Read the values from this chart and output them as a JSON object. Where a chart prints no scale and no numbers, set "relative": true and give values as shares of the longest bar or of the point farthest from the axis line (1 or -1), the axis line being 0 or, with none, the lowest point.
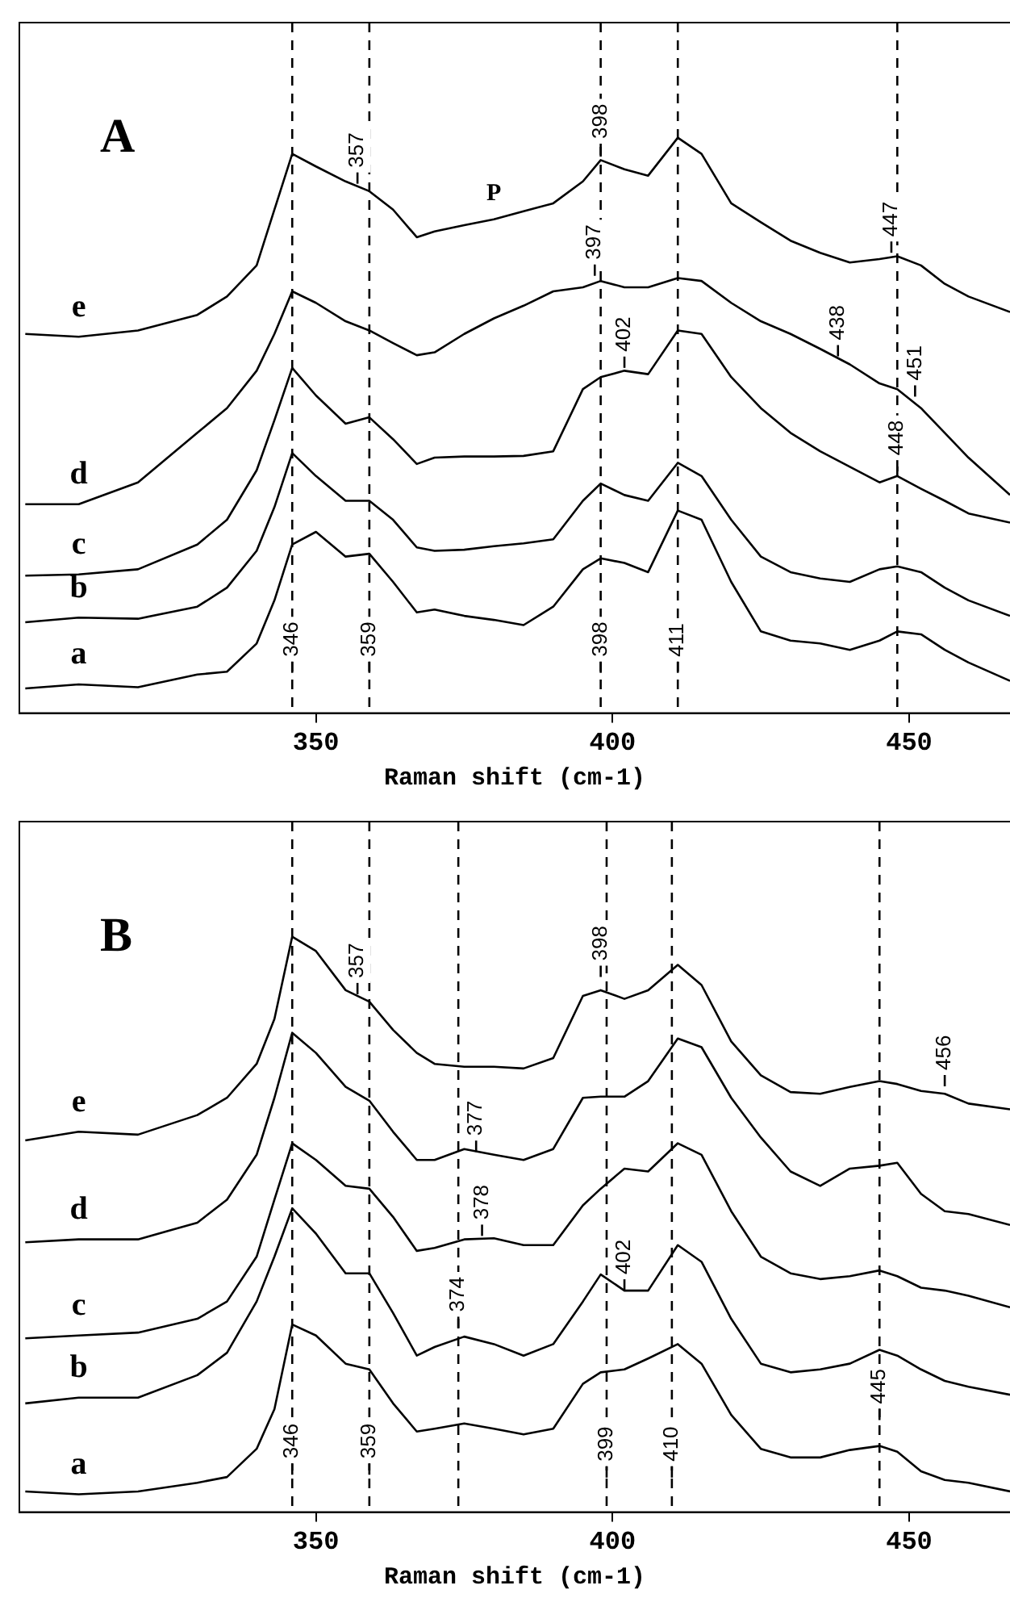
{
  "chart_data": [
    {
      "type": "line",
      "title": "A",
      "xlabel": "Raman shift (cm-1)",
      "relative": true,
      "tick_labels": "x",
      "grid": false,
      "x": [
        301,
        310,
        320,
        330,
        335,
        340,
        343,
        346,
        350,
        355,
        359,
        363,
        367,
        370,
        375,
        380,
        385,
        390,
        395,
        398,
        402,
        406,
        411,
        415,
        420,
        425,
        430,
        435,
        440,
        445,
        448,
        452,
        456,
        460,
        467
      ],
      "xlim": [
        300,
        467
      ],
      "xticks": [
        350,
        400,
        450
      ],
      "series": [
        {
          "name": "e",
          "color": "#000000",
          "values": [
            0.659,
            0.654,
            0.665,
            0.692,
            0.724,
            0.778,
            0.875,
            0.972,
            0.95,
            0.924,
            0.907,
            0.875,
            0.827,
            0.837,
            0.848,
            0.858,
            0.872,
            0.886,
            0.924,
            0.961,
            0.945,
            0.934,
            1,
            0.972,
            0.886,
            0.853,
            0.821,
            0.8,
            0.783,
            0.789,
            0.794,
            0.778,
            0.746,
            0.724,
            0.697
          ]
        },
        {
          "name": "d",
          "color": "#000000",
          "values": [
            0.363,
            0.363,
            0.401,
            0.487,
            0.53,
            0.595,
            0.659,
            0.733,
            0.713,
            0.681,
            0.665,
            0.643,
            0.622,
            0.627,
            0.659,
            0.686,
            0.708,
            0.733,
            0.74,
            0.751,
            0.74,
            0.74,
            0.756,
            0.751,
            0.713,
            0.681,
            0.659,
            0.633,
            0.606,
            0.573,
            0.563,
            0.53,
            0.487,
            0.444,
            0.379
          ]
        },
        {
          "name": "c",
          "color": "#000000",
          "values": [
            0.239,
            0.241,
            0.25,
            0.293,
            0.336,
            0.422,
            0.509,
            0.6,
            0.552,
            0.503,
            0.514,
            0.476,
            0.433,
            0.444,
            0.446,
            0.446,
            0.447,
            0.455,
            0.563,
            0.584,
            0.595,
            0.589,
            0.665,
            0.659,
            0.584,
            0.53,
            0.487,
            0.455,
            0.428,
            0.401,
            0.412,
            0.39,
            0.369,
            0.347,
            0.331
          ]
        },
        {
          "name": "b",
          "color": "#000000",
          "values": [
            0.158,
            0.166,
            0.164,
            0.185,
            0.218,
            0.282,
            0.358,
            0.452,
            0.412,
            0.369,
            0.369,
            0.336,
            0.288,
            0.282,
            0.284,
            0.29,
            0.295,
            0.302,
            0.369,
            0.399,
            0.379,
            0.369,
            0.435,
            0.412,
            0.336,
            0.272,
            0.245,
            0.234,
            0.228,
            0.25,
            0.255,
            0.245,
            0.218,
            0.196,
            0.169
          ]
        },
        {
          "name": "a",
          "color": "#000000",
          "values": [
            0.043,
            0.05,
            0.045,
            0.067,
            0.072,
            0.121,
            0.196,
            0.293,
            0.315,
            0.272,
            0.277,
            0.228,
            0.175,
            0.18,
            0.169,
            0.162,
            0.153,
            0.185,
            0.25,
            0.269,
            0.261,
            0.245,
            0.352,
            0.336,
            0.228,
            0.142,
            0.126,
            0.121,
            0.11,
            0.126,
            0.142,
            0.137,
            0.11,
            0.088,
            0.056
          ]
        }
      ],
      "ref_lines": [
        {
          "axis": "x",
          "value": 346,
          "line_style": "dashed"
        },
        {
          "axis": "x",
          "value": 359,
          "line_style": "dashed"
        },
        {
          "axis": "x",
          "value": 398,
          "line_style": "dashed"
        },
        {
          "axis": "x",
          "value": 411,
          "line_style": "dashed"
        },
        {
          "axis": "x",
          "value": 448,
          "line_style": "dashed"
        }
      ],
      "annotations": [
        {
          "text": "357",
          "x": 357,
          "y": 0.92
        },
        {
          "text": "398",
          "x": 398,
          "y": 0.97
        },
        {
          "text": "P",
          "x": 380,
          "y": 0.858
        },
        {
          "text": "397",
          "x": 397,
          "y": 0.76
        },
        {
          "text": "447",
          "x": 447,
          "y": 0.8
        },
        {
          "text": "402",
          "x": 402,
          "y": 0.6
        },
        {
          "text": "438",
          "x": 438,
          "y": 0.62
        },
        {
          "text": "451",
          "x": 451,
          "y": 0.55
        },
        {
          "text": "448",
          "x": 448,
          "y": 0.42
        },
        {
          "text": "346",
          "x": 346,
          "y": 0.07
        },
        {
          "text": "359",
          "x": 359,
          "y": 0.07
        },
        {
          "text": "398",
          "x": 398,
          "y": 0.07
        },
        {
          "text": "411",
          "x": 411,
          "y": 0.07
        }
      ]
    },
    {
      "type": "line",
      "title": "B",
      "xlabel": "Raman shift (cm-1)",
      "relative": true,
      "tick_labels": "x",
      "grid": false,
      "x": [
        301,
        310,
        320,
        330,
        335,
        340,
        343,
        346,
        350,
        355,
        359,
        363,
        367,
        370,
        375,
        380,
        385,
        390,
        395,
        398,
        402,
        406,
        411,
        415,
        420,
        425,
        430,
        435,
        440,
        445,
        448,
        452,
        456,
        460,
        467
      ],
      "xlim": [
        300,
        467
      ],
      "xticks": [
        350,
        400,
        450
      ],
      "series": [
        {
          "name": "e",
          "color": "#000000",
          "values": [
            0.646,
            0.661,
            0.656,
            0.69,
            0.72,
            0.779,
            0.857,
            1,
            0.975,
            0.907,
            0.887,
            0.838,
            0.798,
            0.779,
            0.774,
            0.774,
            0.771,
            0.789,
            0.897,
            0.907,
            0.892,
            0.907,
            0.951,
            0.916,
            0.818,
            0.759,
            0.73,
            0.727,
            0.739,
            0.749,
            0.744,
            0.732,
            0.727,
            0.71,
            0.7
          ]
        },
        {
          "name": "d",
          "color": "#000000",
          "values": [
            0.469,
            0.474,
            0.474,
            0.503,
            0.543,
            0.621,
            0.72,
            0.833,
            0.798,
            0.739,
            0.715,
            0.661,
            0.612,
            0.612,
            0.631,
            0.621,
            0.612,
            0.631,
            0.72,
            0.722,
            0.722,
            0.749,
            0.823,
            0.808,
            0.72,
            0.651,
            0.592,
            0.567,
            0.597,
            0.602,
            0.607,
            0.553,
            0.523,
            0.518,
            0.499
          ]
        },
        {
          "name": "c",
          "color": "#000000",
          "values": [
            0.302,
            0.307,
            0.312,
            0.336,
            0.366,
            0.444,
            0.543,
            0.641,
            0.612,
            0.567,
            0.562,
            0.513,
            0.454,
            0.459,
            0.474,
            0.476,
            0.464,
            0.464,
            0.533,
            0.562,
            0.597,
            0.592,
            0.641,
            0.621,
            0.523,
            0.444,
            0.415,
            0.405,
            0.41,
            0.42,
            0.41,
            0.39,
            0.385,
            0.376,
            0.356
          ]
        },
        {
          "name": "b",
          "color": "#000000",
          "values": [
            0.189,
            0.199,
            0.199,
            0.238,
            0.277,
            0.366,
            0.444,
            0.528,
            0.484,
            0.415,
            0.415,
            0.346,
            0.272,
            0.287,
            0.305,
            0.292,
            0.272,
            0.292,
            0.366,
            0.413,
            0.385,
            0.385,
            0.464,
            0.435,
            0.336,
            0.258,
            0.243,
            0.248,
            0.258,
            0.282,
            0.272,
            0.248,
            0.228,
            0.218,
            0.204
          ]
        },
        {
          "name": "a",
          "color": "#000000",
          "values": [
            0.036,
            0.031,
            0.036,
            0.051,
            0.061,
            0.11,
            0.179,
            0.326,
            0.307,
            0.258,
            0.248,
            0.189,
            0.14,
            0.145,
            0.154,
            0.145,
            0.135,
            0.145,
            0.223,
            0.243,
            0.248,
            0.267,
            0.292,
            0.258,
            0.169,
            0.11,
            0.095,
            0.095,
            0.108,
            0.115,
            0.105,
            0.071,
            0.056,
            0.051,
            0.036
          ]
        }
      ],
      "ref_lines": [
        {
          "axis": "x",
          "value": 346,
          "line_style": "dashed"
        },
        {
          "axis": "x",
          "value": 359,
          "line_style": "dashed"
        },
        {
          "axis": "x",
          "value": 374,
          "line_style": "dashed"
        },
        {
          "axis": "x",
          "value": 399,
          "line_style": "dashed"
        },
        {
          "axis": "x",
          "value": 410,
          "line_style": "dashed"
        },
        {
          "axis": "x",
          "value": 445,
          "line_style": "dashed"
        }
      ],
      "annotations": [
        {
          "text": "357",
          "x": 357,
          "y": 0.9
        },
        {
          "text": "398",
          "x": 398,
          "y": 0.93
        },
        {
          "text": "456",
          "x": 456,
          "y": 0.74
        },
        {
          "text": "377",
          "x": 377,
          "y": 0.626
        },
        {
          "text": "378",
          "x": 378,
          "y": 0.48
        },
        {
          "text": "402",
          "x": 402,
          "y": 0.385
        },
        {
          "text": "374",
          "x": 374,
          "y": 0.32
        },
        {
          "text": "445",
          "x": 445,
          "y": 0.16
        },
        {
          "text": "346",
          "x": 346,
          "y": 0.065
        },
        {
          "text": "359",
          "x": 359,
          "y": 0.065
        },
        {
          "text": "399",
          "x": 399,
          "y": 0.06
        },
        {
          "text": "410",
          "x": 410,
          "y": 0.06
        }
      ]
    }
  ]
}
